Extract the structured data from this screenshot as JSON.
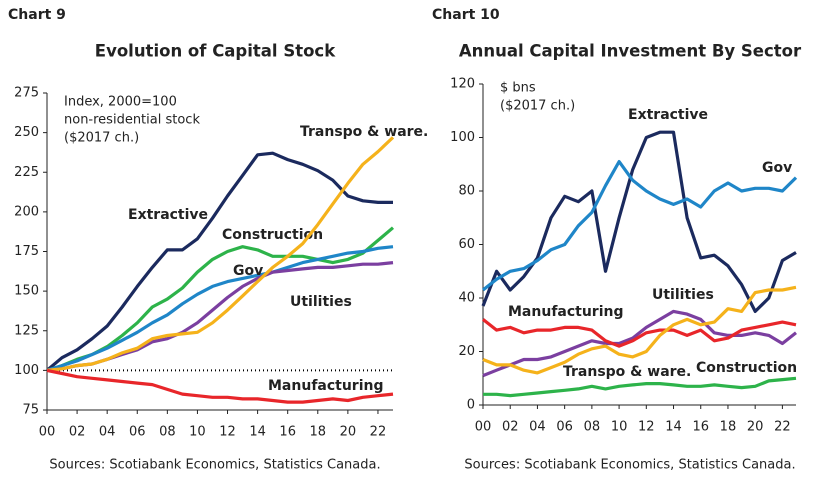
{
  "chart_data": [
    {
      "type": "line",
      "label": "Chart 9",
      "title": "Evolution of Capital Stock",
      "annotation": [
        "Index, 2000=100",
        "non-residential stock",
        "($2017 ch.)"
      ],
      "source": "Sources: Scotiabank Economics, Statistics Canada.",
      "x": [
        0,
        1,
        2,
        3,
        4,
        5,
        6,
        7,
        8,
        9,
        10,
        11,
        12,
        13,
        14,
        15,
        16,
        17,
        18,
        19,
        20,
        21,
        22,
        23
      ],
      "xlim": [
        0,
        23
      ],
      "xticks": [
        {
          "value": 0,
          "label": "00"
        },
        {
          "value": 2,
          "label": "02"
        },
        {
          "value": 4,
          "label": "04"
        },
        {
          "value": 6,
          "label": "06"
        },
        {
          "value": 8,
          "label": "08"
        },
        {
          "value": 10,
          "label": "10"
        },
        {
          "value": 12,
          "label": "12"
        },
        {
          "value": 14,
          "label": "14"
        },
        {
          "value": 16,
          "label": "16"
        },
        {
          "value": 18,
          "label": "18"
        },
        {
          "value": 20,
          "label": "20"
        },
        {
          "value": 22,
          "label": "22"
        }
      ],
      "ylim": [
        75,
        275
      ],
      "yticks": [
        75,
        100,
        125,
        150,
        175,
        200,
        225,
        250,
        275
      ],
      "reference_line": 100,
      "series": [
        {
          "name": "Extractive",
          "color": "#1b2a5e",
          "values": [
            100,
            108,
            113,
            120,
            128,
            140,
            153,
            165,
            176,
            176,
            183,
            196,
            210,
            223,
            236,
            237,
            233,
            230,
            226,
            220,
            210,
            207,
            206,
            206
          ]
        },
        {
          "name": "Construction",
          "color": "#2db34a",
          "values": [
            100,
            103,
            107,
            110,
            115,
            122,
            130,
            140,
            145,
            152,
            162,
            170,
            175,
            178,
            176,
            172,
            172,
            172,
            170,
            168,
            170,
            174,
            182,
            190
          ]
        },
        {
          "name": "Gov",
          "color": "#1f86c8",
          "values": [
            100,
            103,
            106,
            110,
            114,
            119,
            124,
            130,
            135,
            142,
            148,
            153,
            156,
            158,
            160,
            162,
            165,
            168,
            170,
            172,
            174,
            175,
            177,
            178
          ]
        },
        {
          "name": "Utilities",
          "color": "#7b3fa0",
          "values": [
            100,
            101,
            103,
            104,
            107,
            110,
            113,
            118,
            120,
            124,
            130,
            138,
            146,
            153,
            158,
            162,
            163,
            164,
            165,
            165,
            166,
            167,
            167,
            168
          ]
        },
        {
          "name": "Transpo & ware.",
          "color": "#f5b21b",
          "values": [
            100,
            101,
            103,
            104,
            107,
            111,
            114,
            120,
            122,
            123,
            124,
            130,
            138,
            147,
            156,
            165,
            172,
            180,
            192,
            205,
            218,
            230,
            238,
            247
          ]
        },
        {
          "name": "Manufacturing",
          "color": "#e8262a",
          "values": [
            100,
            98,
            96,
            95,
            94,
            93,
            92,
            91,
            88,
            85,
            84,
            83,
            83,
            82,
            82,
            81,
            80,
            80,
            81,
            82,
            81,
            83,
            84,
            85
          ]
        }
      ]
    },
    {
      "type": "line",
      "label": "Chart 10",
      "title": "Annual Capital Investment By Sector",
      "annotation": [
        "$ bns",
        "($2017 ch.)"
      ],
      "source": "Sources: Scotiabank Economics, Statistics Canada.",
      "x": [
        0,
        1,
        2,
        3,
        4,
        5,
        6,
        7,
        8,
        9,
        10,
        11,
        12,
        13,
        14,
        15,
        16,
        17,
        18,
        19,
        20,
        21,
        22,
        23
      ],
      "xlim": [
        0,
        23
      ],
      "xticks": [
        {
          "value": 0,
          "label": "00"
        },
        {
          "value": 2,
          "label": "02"
        },
        {
          "value": 4,
          "label": "04"
        },
        {
          "value": 6,
          "label": "06"
        },
        {
          "value": 8,
          "label": "08"
        },
        {
          "value": 10,
          "label": "10"
        },
        {
          "value": 12,
          "label": "12"
        },
        {
          "value": 14,
          "label": "14"
        },
        {
          "value": 16,
          "label": "16"
        },
        {
          "value": 18,
          "label": "18"
        },
        {
          "value": 20,
          "label": "20"
        },
        {
          "value": 22,
          "label": "22"
        }
      ],
      "ylim": [
        0,
        120
      ],
      "yticks": [
        0,
        20,
        40,
        60,
        80,
        100,
        120
      ],
      "series": [
        {
          "name": "Extractive",
          "color": "#1b2a5e",
          "values": [
            37,
            50,
            43,
            48,
            55,
            70,
            78,
            76,
            80,
            50,
            70,
            88,
            100,
            102,
            102,
            70,
            55,
            56,
            52,
            45,
            35,
            40,
            54,
            57
          ]
        },
        {
          "name": "Gov",
          "color": "#1f86c8",
          "values": [
            43,
            47,
            50,
            51,
            54,
            58,
            60,
            67,
            72,
            82,
            91,
            84,
            80,
            77,
            75,
            77,
            74,
            80,
            83,
            80,
            81,
            81,
            80,
            85
          ]
        },
        {
          "name": "Utilities",
          "color": "#7b3fa0",
          "values": [
            11,
            13,
            15,
            17,
            17,
            18,
            20,
            22,
            24,
            23,
            23,
            25,
            29,
            32,
            35,
            34,
            32,
            27,
            26,
            26,
            27,
            26,
            23,
            27
          ]
        },
        {
          "name": "Manufacturing",
          "color": "#e8262a",
          "values": [
            32,
            28,
            29,
            27,
            28,
            28,
            29,
            29,
            28,
            24,
            22,
            24,
            27,
            28,
            28,
            26,
            28,
            24,
            25,
            28,
            29,
            30,
            31,
            30
          ]
        },
        {
          "name": "Transpo & ware.",
          "color": "#f5b21b",
          "values": [
            17,
            15,
            15,
            13,
            12,
            14,
            16,
            19,
            21,
            22,
            19,
            18,
            20,
            26,
            30,
            32,
            30,
            31,
            36,
            35,
            42,
            43,
            43,
            44
          ]
        },
        {
          "name": "Construction",
          "color": "#2db34a",
          "values": [
            4,
            4,
            3.5,
            4,
            4.5,
            5,
            5.5,
            6,
            7,
            6,
            7,
            7.5,
            8,
            8,
            7.5,
            7,
            7,
            7.5,
            7,
            6.5,
            7,
            9,
            9.5,
            10
          ]
        }
      ]
    }
  ]
}
